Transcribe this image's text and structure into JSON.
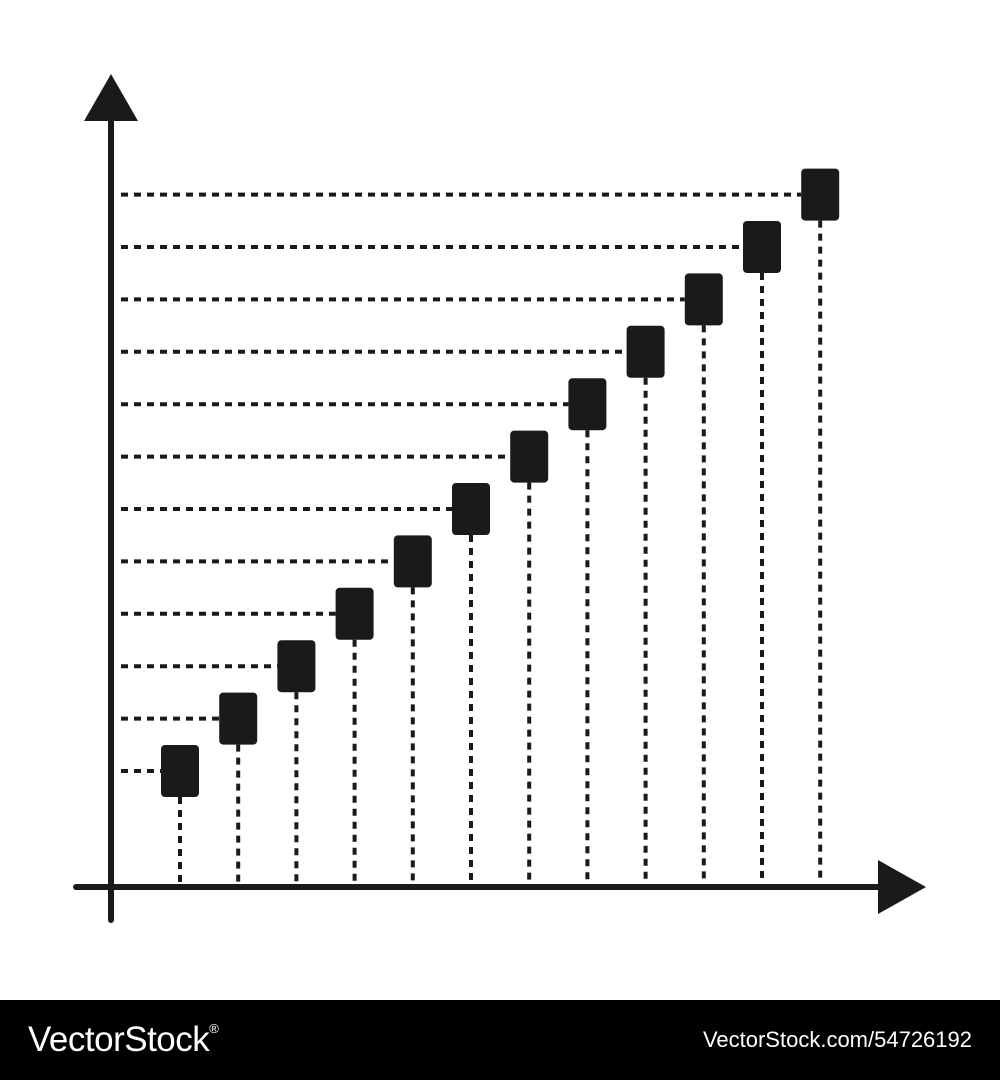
{
  "chart_data": {
    "type": "scatter",
    "title": "",
    "xlabel": "",
    "ylabel": "",
    "grid": false,
    "legend": "none",
    "x": [
      1,
      2,
      3,
      4,
      5,
      6,
      7,
      8,
      9,
      10,
      11,
      12
    ],
    "y": [
      1,
      2,
      3,
      4,
      5,
      6,
      7,
      8,
      9,
      10,
      11,
      12
    ],
    "xlim": [
      0,
      12.5
    ],
    "ylim": [
      0,
      14
    ],
    "marker": "square",
    "guide_lines": "dashed",
    "colors": {
      "mark": "#1a1a1a",
      "axis": "#1a1a1a",
      "background": "#ffffff"
    }
  },
  "footer": {
    "brand": "VectorStock",
    "brand_mark": "®",
    "image_id": "VectorStock.com/54726192",
    "colors": {
      "background": "#000000",
      "text": "#ffffff"
    }
  }
}
